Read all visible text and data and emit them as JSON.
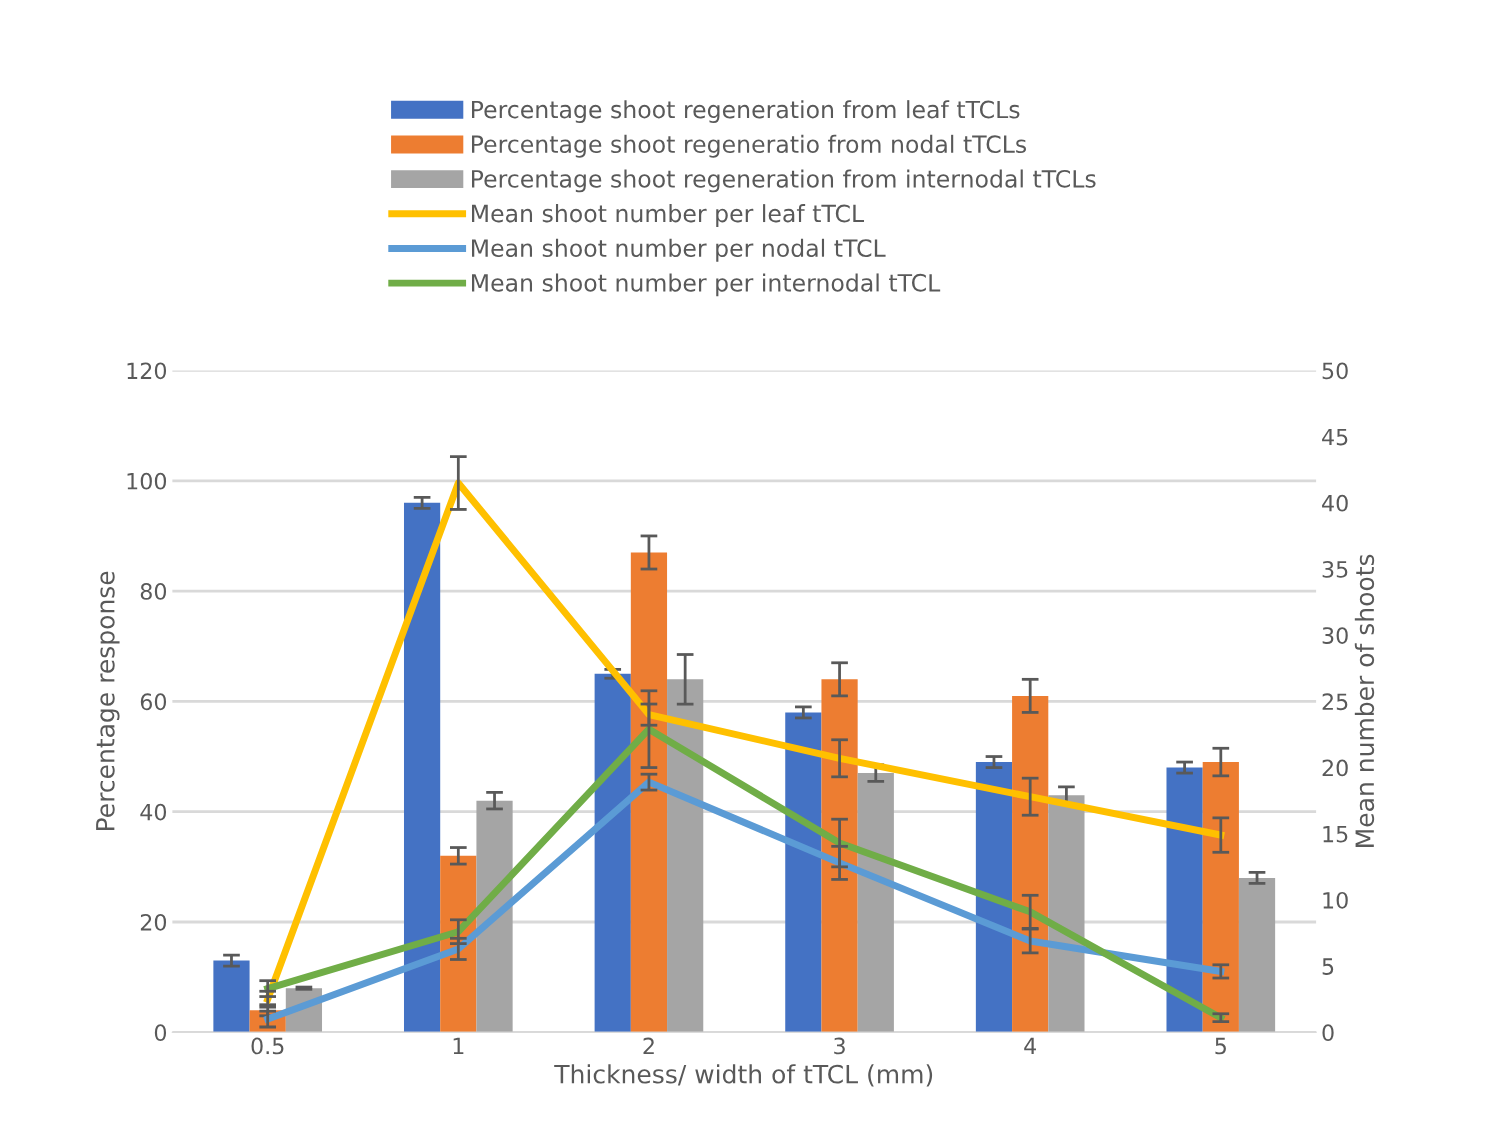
{
  "chart_data": {
    "type": "bar",
    "xlabel": "Thickness/ width of tTCL (mm)",
    "ylabel": "Percentage response",
    "y2label": "Mean number of shoots",
    "categories": [
      "0.5",
      "1",
      "2",
      "3",
      "4",
      "5"
    ],
    "series": [
      {
        "name": "Percentage shoot regeneration from leaf tTCLs",
        "color": "#4472c4",
        "values": [
          13,
          96,
          65,
          58,
          49,
          48
        ],
        "errors": [
          1,
          1,
          0.8,
          1,
          1,
          1
        ]
      },
      {
        "name": "Percentage shoot regeneratio from nodal tTCLs",
        "color": "#ed7d31",
        "values": [
          4,
          32,
          87,
          64,
          61,
          49
        ],
        "errors": [
          1,
          1.5,
          3,
          3,
          3,
          2.5
        ]
      },
      {
        "name": "Percentage shoot regeneration from internodal tTCLs",
        "color": "#a5a5a5",
        "values": [
          8,
          42,
          64,
          47,
          43,
          28
        ],
        "errors": [
          0.2,
          1.5,
          4.5,
          1.5,
          1.5,
          1
        ]
      },
      {
        "name": "Mean shoot number per leaf tTCL",
        "type": "line",
        "axis": "y2",
        "color": "#ffc000",
        "values": [
          2.5,
          41.5,
          24,
          20.7,
          17.8,
          14.9
        ],
        "errors": [
          0.6,
          2,
          0.8,
          1.4,
          1.4,
          1.3
        ]
      },
      {
        "name": "Mean shoot number per nodal tTCL",
        "type": "line",
        "axis": "y2",
        "color": "#5b9bd5",
        "values": [
          1,
          6.3,
          18.9,
          12.8,
          6.9,
          4.6
        ],
        "errors": [
          0.6,
          0.8,
          0.6,
          1.25,
          0.9,
          0.5
        ]
      },
      {
        "name": "Mean shoot number per internodal tTCL",
        "type": "line",
        "axis": "y2",
        "color": "#70ad47",
        "values": [
          3.3,
          7.6,
          22.9,
          14.3,
          9.1,
          1.1
        ],
        "errors": [
          0.6,
          0.9,
          2.9,
          1.8,
          1.25,
          0.3
        ]
      }
    ],
    "ylim": [
      0,
      120
    ],
    "yticks": [
      0,
      20,
      40,
      60,
      80,
      100,
      120
    ],
    "y2lim": [
      0,
      50
    ],
    "y2ticks": [
      0,
      5,
      10,
      15,
      20,
      25,
      30,
      35,
      40,
      45,
      50
    ],
    "grid": "y",
    "legend": "top",
    "marker": "none",
    "line_style": "solid"
  }
}
